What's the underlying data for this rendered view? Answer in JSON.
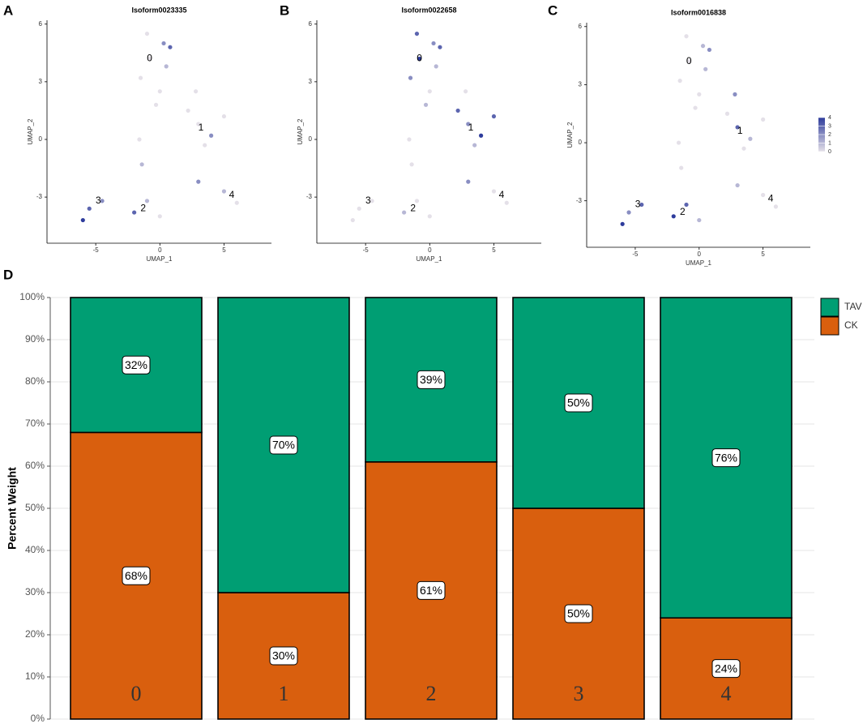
{
  "chart_data": [
    {
      "type": "scatter",
      "panel_label": "A",
      "title": "Isoform0023335",
      "xlabel": "UMAP_1",
      "ylabel": "UMAP_2",
      "xlim": [
        -8.8,
        8.7
      ],
      "ylim": [
        -5.4,
        6.2
      ],
      "xticks": [
        -5,
        0,
        5
      ],
      "yticks": [
        -3,
        0,
        3,
        6
      ],
      "x": [
        -1,
        0.3,
        -0.8,
        0.5,
        -1.5,
        0,
        -0.3,
        0.8,
        2.2,
        3,
        4,
        5,
        3.5,
        2.8,
        -1.6,
        -1.4,
        3,
        5,
        6,
        -1,
        -2,
        0,
        -5.5,
        -4.5,
        -6
      ],
      "y": [
        5.5,
        5,
        4.2,
        3.8,
        3.2,
        2.5,
        1.8,
        4.8,
        1.5,
        0.8,
        0.2,
        1.2,
        -0.3,
        2.5,
        0,
        -1.3,
        -2.2,
        -2.7,
        -3.3,
        -3.2,
        -3.8,
        -4,
        -3.6,
        -3.2,
        -4.2
      ],
      "values": [
        0,
        2,
        0,
        1,
        0,
        0,
        0,
        3,
        0,
        0,
        2,
        0,
        0,
        0,
        0,
        1,
        2,
        1,
        0,
        1,
        3,
        0,
        3,
        2,
        4
      ],
      "annotations": [
        {
          "text": "0",
          "x": -0.8,
          "y": 4.2
        },
        {
          "text": "1",
          "x": 3.2,
          "y": 0.6
        },
        {
          "text": "2",
          "x": -1.3,
          "y": -3.6
        },
        {
          "text": "3",
          "x": -4.8,
          "y": -3.2
        },
        {
          "text": "4",
          "x": 5.6,
          "y": -2.9
        }
      ]
    },
    {
      "type": "scatter",
      "panel_label": "B",
      "title": "Isoform0022658",
      "xlabel": "UMAP_1",
      "ylabel": "UMAP_2",
      "xlim": [
        -8.8,
        8.7
      ],
      "ylim": [
        -5.4,
        6.2
      ],
      "xticks": [
        -5,
        0,
        5
      ],
      "yticks": [
        -3,
        0,
        3,
        6
      ],
      "x": [
        -1,
        0.3,
        -0.8,
        0.5,
        -1.5,
        0,
        -0.3,
        0.8,
        2.2,
        3,
        4,
        5,
        3.5,
        2.8,
        -1.6,
        -1.4,
        3,
        5,
        6,
        -1,
        -2,
        0,
        -5.5,
        -4.5,
        -6
      ],
      "y": [
        5.5,
        5,
        4.2,
        3.8,
        3.2,
        2.5,
        1.8,
        4.8,
        1.5,
        0.8,
        0.2,
        1.2,
        -0.3,
        2.5,
        0,
        -1.3,
        -2.2,
        -2.7,
        -3.3,
        -3.2,
        -3.8,
        -4,
        -3.6,
        -3.2,
        -4.2
      ],
      "values": [
        3,
        2,
        4,
        1,
        2,
        0,
        1,
        3,
        3,
        2,
        4,
        3,
        1,
        0,
        0,
        0,
        2,
        0,
        0,
        0,
        1,
        0,
        0,
        0,
        0
      ],
      "annotations": [
        {
          "text": "0",
          "x": -0.8,
          "y": 4.2
        },
        {
          "text": "1",
          "x": 3.2,
          "y": 0.6
        },
        {
          "text": "2",
          "x": -1.3,
          "y": -3.6
        },
        {
          "text": "3",
          "x": -4.8,
          "y": -3.2
        },
        {
          "text": "4",
          "x": 5.6,
          "y": -2.9
        }
      ]
    },
    {
      "type": "scatter",
      "panel_label": "C",
      "title": "Isoform0016838",
      "xlabel": "UMAP_1",
      "ylabel": "UMAP_2",
      "xlim": [
        -8.8,
        8.7
      ],
      "ylim": [
        -5.4,
        6.2
      ],
      "xticks": [
        -5,
        0,
        5
      ],
      "yticks": [
        -3,
        0,
        3,
        6
      ],
      "x": [
        -1,
        0.3,
        -0.8,
        0.5,
        -1.5,
        0,
        -0.3,
        0.8,
        2.2,
        3,
        4,
        5,
        3.5,
        2.8,
        -1.6,
        -1.4,
        3,
        5,
        6,
        -1,
        -2,
        0,
        -5.5,
        -4.5,
        -6
      ],
      "y": [
        5.5,
        5,
        4.2,
        3.8,
        3.2,
        2.5,
        1.8,
        4.8,
        1.5,
        0.8,
        0.2,
        1.2,
        -0.3,
        2.5,
        0,
        -1.3,
        -2.2,
        -2.7,
        -3.3,
        -3.2,
        -3.8,
        -4,
        -3.6,
        -3.2,
        -4.2
      ],
      "values": [
        0,
        1,
        0,
        1,
        0,
        0,
        0,
        2,
        0,
        3,
        1,
        0,
        0,
        2,
        0,
        0,
        1,
        0,
        0,
        3,
        4,
        1,
        2,
        3,
        4
      ],
      "annotations": [
        {
          "text": "0",
          "x": -0.8,
          "y": 4.2
        },
        {
          "text": "1",
          "x": 3.2,
          "y": 0.6
        },
        {
          "text": "2",
          "x": -1.3,
          "y": -3.6
        },
        {
          "text": "3",
          "x": -4.8,
          "y": -3.2
        },
        {
          "text": "4",
          "x": 5.6,
          "y": -2.9
        }
      ],
      "colorbar": {
        "lim": [
          0,
          4
        ],
        "ticks": [
          0,
          1,
          2,
          3,
          4
        ],
        "colors": [
          "#e4e0e8",
          "#2e3c9c"
        ]
      }
    },
    {
      "type": "stacked_bar",
      "panel_label": "D",
      "ylabel": "Percent Weight",
      "categories": [
        "0",
        "1",
        "2",
        "3",
        "4"
      ],
      "series": [
        {
          "name": "CK",
          "color": "#d95f0e",
          "values": [
            68,
            30,
            61,
            50,
            24
          ],
          "value_labels": [
            "68%",
            "30%",
            "61%",
            "50%",
            "24%"
          ]
        },
        {
          "name": "TAV",
          "color": "#009e73",
          "values": [
            32,
            70,
            39,
            50,
            76
          ],
          "value_labels": [
            "32%",
            "70%",
            "39%",
            "50%",
            "76%"
          ]
        }
      ],
      "ylim": [
        0,
        100
      ],
      "yticks": [
        {
          "value": 0,
          "label": "0%"
        },
        {
          "value": 10,
          "label": "10%"
        },
        {
          "value": 20,
          "label": "20%"
        },
        {
          "value": 30,
          "label": "30%"
        },
        {
          "value": 40,
          "label": "40%"
        },
        {
          "value": 50,
          "label": "50%"
        },
        {
          "value": 60,
          "label": "60%"
        },
        {
          "value": 70,
          "label": "70%"
        },
        {
          "value": 80,
          "label": "80%"
        },
        {
          "value": 90,
          "label": "90%"
        },
        {
          "value": 100,
          "label": "100%"
        }
      ],
      "grid": true,
      "legend": "right"
    }
  ]
}
